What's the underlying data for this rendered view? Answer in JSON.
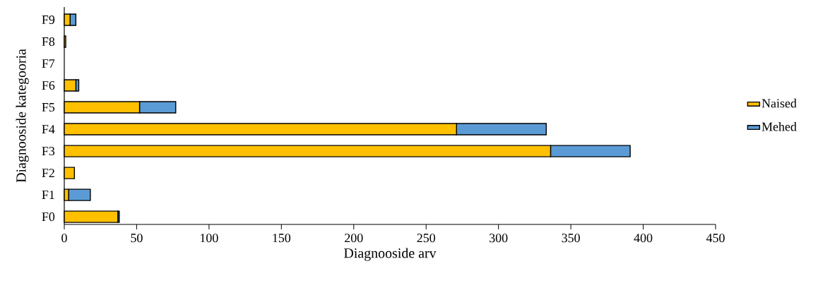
{
  "chart_data": {
    "type": "bar",
    "orientation": "horizontal",
    "stacked": true,
    "xlabel": "Diagnooside arv",
    "ylabel": "Diagnooside kategooria",
    "categories": [
      "F9",
      "F8",
      "F7",
      "F6",
      "F5",
      "F4",
      "F3",
      "F2",
      "F1",
      "F0"
    ],
    "series": [
      {
        "name": "Naised",
        "color": "#ffc000",
        "values": [
          4,
          1,
          0,
          8,
          52,
          271,
          336,
          7,
          3,
          37
        ]
      },
      {
        "name": "Mehed",
        "color": "#5b9bd5",
        "values": [
          4,
          0,
          0,
          2,
          25,
          62,
          55,
          0,
          15,
          1
        ]
      }
    ],
    "xlim": [
      0,
      450
    ],
    "xticks": [
      0,
      50,
      100,
      150,
      200,
      250,
      300,
      350,
      400,
      450
    ],
    "grid": false,
    "legend": "right"
  }
}
